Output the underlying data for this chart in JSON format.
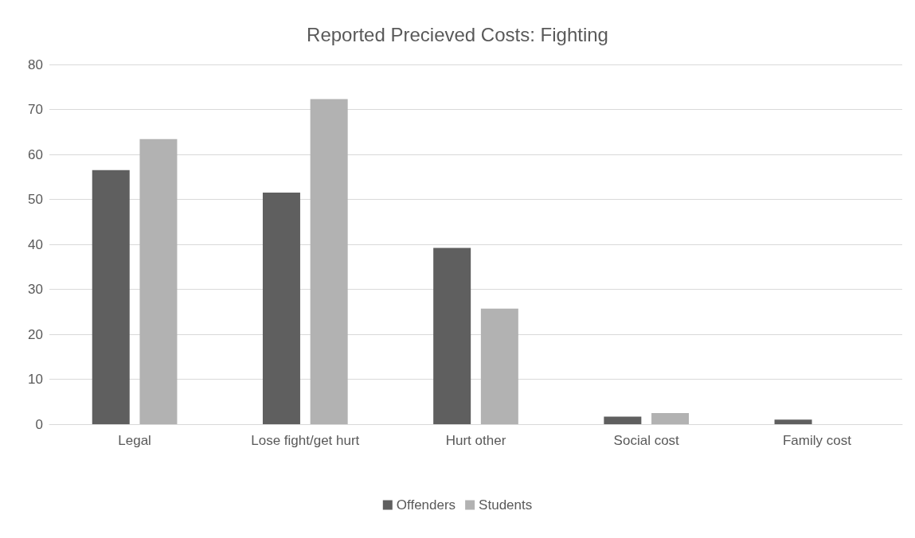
{
  "chart_data": {
    "type": "bar",
    "title": "Reported Precieved Costs: Fighting",
    "categories": [
      "Legal",
      "Lose fight/get hurt",
      "Hurt other",
      "Social cost",
      "Family cost"
    ],
    "series": [
      {
        "name": "Offenders",
        "color": "#5f5f5f",
        "values": [
          56.5,
          51.5,
          39.2,
          1.7,
          1.0
        ]
      },
      {
        "name": "Students",
        "color": "#b2b2b2",
        "values": [
          63.4,
          72.3,
          25.7,
          2.5,
          0
        ]
      }
    ],
    "ylim": [
      0,
      80
    ],
    "yticks": [
      0,
      10,
      20,
      30,
      40,
      50,
      60,
      70,
      80
    ],
    "grid": "y",
    "legend": "bottom"
  }
}
